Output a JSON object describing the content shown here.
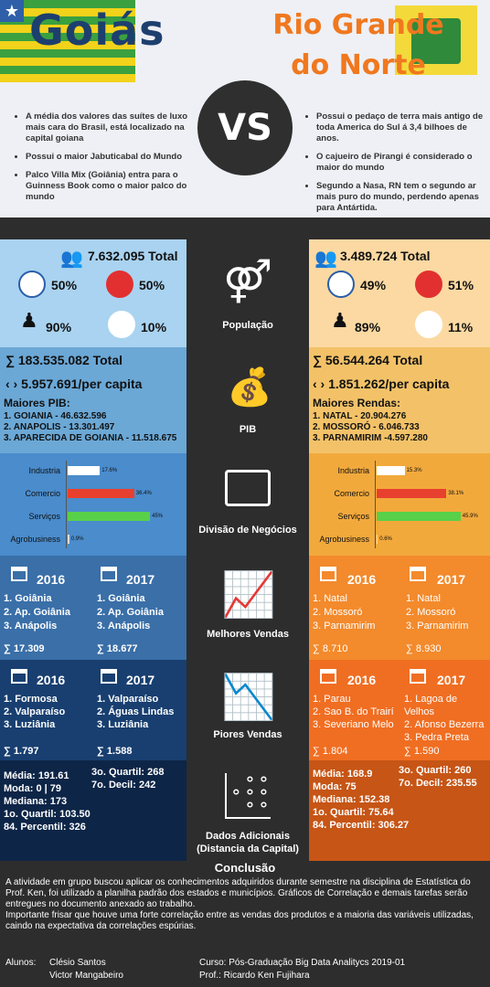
{
  "header": {
    "goias": "Goiás",
    "rn_line1": "Rio Grande",
    "rn_line2": "do Norte",
    "vs": "VS",
    "goias_facts": [
      "A média dos valores das suítes de luxo mais cara do Brasil, está localizado na capital goiana",
      "Possui o maior Jabuticabal do Mundo",
      "Palco Villa Mix (Goiânia) entra para o Guinness Book como o maior palco do mundo"
    ],
    "rn_facts": [
      "Possui o pedaço de terra mais antigo de toda America do Sul á 3,4 bilhoes de anos.",
      "O cajueiro de Pirangi é considerado o maior do mundo",
      "Segundo a Nasa, RN tem o segundo ar mais puro do mundo, perdendo apenas para Antártida."
    ]
  },
  "labels": {
    "populacao": "População",
    "pib": "PIB",
    "negocios": "Divisão de Negócios",
    "melhores": "Melhores Vendas",
    "piores": "Piores Vendas",
    "adicionais1": "Dados Adicionais",
    "adicionais2": "(Distancia da Capital)"
  },
  "pop": {
    "g_total": "7.632.095 Total",
    "g_male": "50%",
    "g_female": "50%",
    "g_adult": "90%",
    "g_elder": "10%",
    "r_total": "3.489.724 Total",
    "r_male": "49%",
    "r_female": "51%",
    "r_adult": "89%",
    "r_elder": "11%"
  },
  "pib": {
    "g_total": "183.535.082 Total",
    "g_capita": "5.957.691/per capita",
    "g_head": "Maiores PIB:",
    "g_items": [
      "1. GOIANIA - 46.632.596",
      "2. ANAPOLIS - 13.301.497",
      "3. APARECIDA DE GOIANIA - 11.518.675"
    ],
    "r_total": "56.544.264 Total",
    "r_capita": "1.851.262/per capita",
    "r_head": "Maiores Rendas:",
    "r_items": [
      "1. NATAL - 20.904.276",
      "2. MOSSORÓ - 6.046.733",
      "3. PARNAMIRIM -4.597.280"
    ]
  },
  "chart_data": [
    {
      "type": "bar",
      "categories": [
        "Industria",
        "Comercio",
        "Serviços",
        "Agrobusiness"
      ],
      "values": [
        17.6,
        36.4,
        45,
        0.9
      ],
      "value_labels": [
        "17.6%",
        "36.4%",
        "45%",
        "0.9%"
      ],
      "colors": [
        "#ffffff",
        "#e8402e",
        "#58d04a",
        "#dddddd"
      ],
      "max": 50
    },
    {
      "type": "bar",
      "categories": [
        "Industria",
        "Comercio",
        "Serviços",
        "Agrobusiness"
      ],
      "values": [
        15.3,
        38.1,
        45.9,
        0.6
      ],
      "value_labels": [
        "15.3%",
        "38.1%",
        "45.9%",
        "0.6%"
      ],
      "colors": [
        "#ffffff",
        "#e8402e",
        "#58d04a",
        "#dddddd"
      ],
      "max": 50
    }
  ],
  "melhores": {
    "y2016": "2016",
    "y2017": "2017",
    "g16": [
      "1. Goiânia",
      "2. Ap. Goiânia",
      "3. Anápolis"
    ],
    "g17": [
      "1. Goiânia",
      "2. Ap. Goiânia",
      "3. Anápolis"
    ],
    "g16_sum": "17.309",
    "g17_sum": "18.677",
    "r16": [
      "1. Natal",
      "2. Mossoró",
      "3. Parnamirim"
    ],
    "r17": [
      "1. Natal",
      "2. Mossoró",
      "3. Parnamirim"
    ],
    "r16_sum": "8.710",
    "r17_sum": "8.930"
  },
  "piores": {
    "g16": [
      "1. Formosa",
      "2. Valparaíso",
      "3. Luziânia"
    ],
    "g17": [
      "1. Valparaíso",
      "2. Águas Lindas",
      "3. Luziânia"
    ],
    "g16_sum": "1.797",
    "g17_sum": "1.588",
    "r16": [
      "1. Parau",
      "2. Sao B. do Trairí",
      "3. Severiano Melo"
    ],
    "r17": [
      "1. Lagoa de Velhos",
      "2. Afonso Bezerra",
      "3. Pedra Preta"
    ],
    "r16_sum": "1.804",
    "r17_sum": "1.590"
  },
  "adic": {
    "g_left": [
      "Média: 191.61",
      "Moda: 0 | 79",
      "Mediana: 173",
      "1o. Quartil: 103.50",
      "84. Percentil: 326"
    ],
    "g_right": [
      "3o. Quartil: 268",
      "7o. Decil: 242"
    ],
    "r_left": [
      "Média: 168.9",
      "Moda: 75",
      "Mediana: 152.38",
      "1o. Quartil: 75.64",
      "84. Percentil: 306.27"
    ],
    "r_right": [
      "3o. Quartil: 260",
      "7o. Decil: 235.55"
    ]
  },
  "conclusao": {
    "title": "Conclusão",
    "p1": "A atividade em grupo buscou aplicar os conhecimentos adquiridos durante semestre na disciplina de Estatística do Prof. Ken, foi utilizado a planilha padrão dos estados e municípios. Gráficos de Correlação e demais tarefas serão entregues no documento anexado ao trabalho.",
    "p2": "Importante frisar que houve uma forte correlação entre as vendas dos produtos e a maioria das variáveis utilizadas, caindo na expectativa da correlações espúrias.",
    "alunos_label": "Alunos:",
    "aluno1": "Clésio Santos",
    "aluno2": "Victor Mangabeiro",
    "curso": "Curso: Pós-Graduação Big Data Analitycs 2019-01",
    "prof": "Prof.: Ricardo Ken Fujihara"
  },
  "sigma": "∑"
}
